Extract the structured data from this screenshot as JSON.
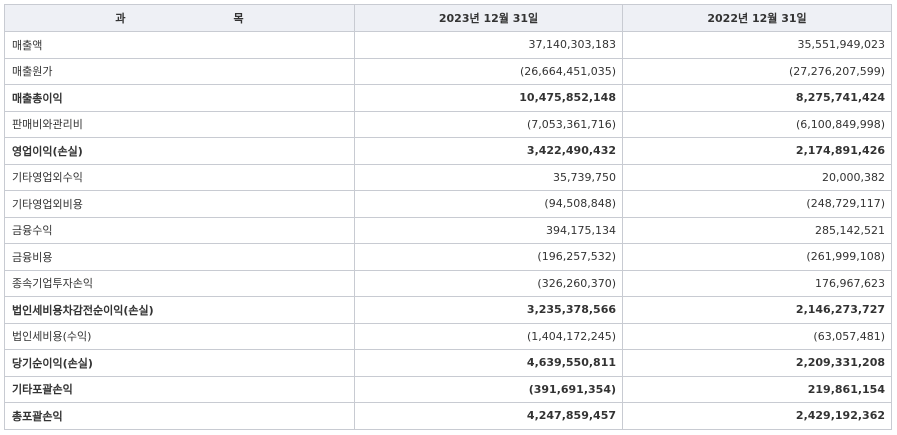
{
  "header": {
    "col_item_left": "과",
    "col_item_right": "목",
    "col_2023": "2023년 12월 31일",
    "col_2022": "2022년 12월 31일"
  },
  "rows": [
    {
      "label": "매출액",
      "v2023": "37,140,303,183",
      "v2022": "35,551,949,023",
      "bold": false
    },
    {
      "label": "매출원가",
      "v2023": "(26,664,451,035)",
      "v2022": "(27,276,207,599)",
      "bold": false
    },
    {
      "label": "매출총이익",
      "v2023": "10,475,852,148",
      "v2022": "8,275,741,424",
      "bold": true
    },
    {
      "label": "판매비와관리비",
      "v2023": "(7,053,361,716)",
      "v2022": "(6,100,849,998)",
      "bold": false
    },
    {
      "label": "영업이익(손실)",
      "v2023": "3,422,490,432",
      "v2022": "2,174,891,426",
      "bold": true
    },
    {
      "label": "기타영업외수익",
      "v2023": "35,739,750",
      "v2022": "20,000,382",
      "bold": false
    },
    {
      "label": "기타영업외비용",
      "v2023": "(94,508,848)",
      "v2022": "(248,729,117)",
      "bold": false
    },
    {
      "label": "금융수익",
      "v2023": "394,175,134",
      "v2022": "285,142,521",
      "bold": false
    },
    {
      "label": "금융비용",
      "v2023": "(196,257,532)",
      "v2022": "(261,999,108)",
      "bold": false
    },
    {
      "label": "종속기업투자손익",
      "v2023": "(326,260,370)",
      "v2022": "176,967,623",
      "bold": false
    },
    {
      "label": "법인세비용차감전순이익(손실)",
      "v2023": "3,235,378,566",
      "v2022": "2,146,273,727",
      "bold": true
    },
    {
      "label": "법인세비용(수익)",
      "v2023": "(1,404,172,245)",
      "v2022": "(63,057,481)",
      "bold": false
    },
    {
      "label": "당기순이익(손실)",
      "v2023": "4,639,550,811",
      "v2022": "2,209,331,208",
      "bold": true
    },
    {
      "label": "기타포괄손익",
      "v2023": "(391,691,354)",
      "v2022": "219,861,154",
      "bold": true
    },
    {
      "label": "총포괄손익",
      "v2023": "4,247,859,457",
      "v2022": "2,429,192,362",
      "bold": true
    }
  ]
}
